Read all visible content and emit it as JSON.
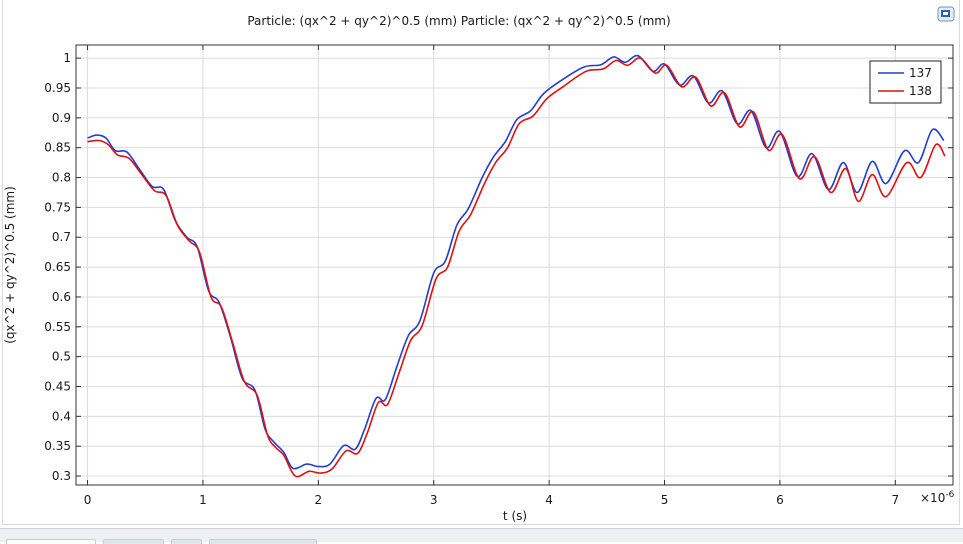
{
  "colors": {
    "series_137": "#1f3fd1",
    "series_138": "#e01010",
    "grid": "#dcdcdc",
    "axis": "#333333"
  },
  "window": {
    "corner_icon": "window-icon"
  },
  "chart_data": {
    "type": "line",
    "title": "Particle: (qx^2 + qy^2)^0.5 (mm)  Particle: (qx^2 + qy^2)^0.5 (mm)",
    "xlabel": "t (s)",
    "ylabel": "(qx^2 + qy^2)^0.5 (mm)",
    "x_multiplier": "×10",
    "x_multiplier_exp": "-6",
    "xlim": [
      -0.1,
      7.5
    ],
    "ylim": [
      0.285,
      1.022
    ],
    "xticks": [
      "0",
      "1",
      "2",
      "3",
      "4",
      "5",
      "6",
      "7"
    ],
    "yticks": [
      "0.3",
      "0.35",
      "0.4",
      "0.45",
      "0.5",
      "0.55",
      "0.6",
      "0.65",
      "0.7",
      "0.75",
      "0.8",
      "0.85",
      "0.9",
      "0.95",
      "1"
    ],
    "grid": true,
    "legend_position": "top-right",
    "series": [
      {
        "name": "137",
        "points": [
          [
            0.0,
            0.866
          ],
          [
            0.08,
            0.871
          ],
          [
            0.16,
            0.866
          ],
          [
            0.24,
            0.845
          ],
          [
            0.34,
            0.843
          ],
          [
            0.45,
            0.814
          ],
          [
            0.56,
            0.785
          ],
          [
            0.66,
            0.78
          ],
          [
            0.76,
            0.728
          ],
          [
            0.86,
            0.7
          ],
          [
            0.95,
            0.684
          ],
          [
            1.05,
            0.61
          ],
          [
            1.14,
            0.591
          ],
          [
            1.24,
            0.532
          ],
          [
            1.34,
            0.464
          ],
          [
            1.45,
            0.444
          ],
          [
            1.54,
            0.378
          ],
          [
            1.62,
            0.356
          ],
          [
            1.7,
            0.34
          ],
          [
            1.78,
            0.313
          ],
          [
            1.9,
            0.32
          ],
          [
            2.0,
            0.316
          ],
          [
            2.1,
            0.32
          ],
          [
            2.22,
            0.351
          ],
          [
            2.32,
            0.345
          ],
          [
            2.4,
            0.378
          ],
          [
            2.5,
            0.43
          ],
          [
            2.58,
            0.428
          ],
          [
            2.68,
            0.483
          ],
          [
            2.78,
            0.535
          ],
          [
            2.88,
            0.56
          ],
          [
            3.0,
            0.64
          ],
          [
            3.1,
            0.66
          ],
          [
            3.2,
            0.72
          ],
          [
            3.3,
            0.748
          ],
          [
            3.42,
            0.8
          ],
          [
            3.52,
            0.835
          ],
          [
            3.62,
            0.86
          ],
          [
            3.72,
            0.897
          ],
          [
            3.84,
            0.912
          ],
          [
            3.95,
            0.94
          ],
          [
            4.1,
            0.962
          ],
          [
            4.3,
            0.985
          ],
          [
            4.45,
            0.989
          ],
          [
            4.56,
            1.002
          ],
          [
            4.66,
            0.993
          ],
          [
            4.77,
            1.004
          ],
          [
            4.9,
            0.978
          ],
          [
            5.0,
            0.99
          ],
          [
            5.13,
            0.955
          ],
          [
            5.25,
            0.97
          ],
          [
            5.38,
            0.925
          ],
          [
            5.5,
            0.945
          ],
          [
            5.63,
            0.89
          ],
          [
            5.75,
            0.912
          ],
          [
            5.88,
            0.85
          ],
          [
            6.0,
            0.877
          ],
          [
            6.15,
            0.802
          ],
          [
            6.28,
            0.84
          ],
          [
            6.42,
            0.78
          ],
          [
            6.55,
            0.825
          ],
          [
            6.67,
            0.775
          ],
          [
            6.8,
            0.827
          ],
          [
            6.92,
            0.79
          ],
          [
            7.08,
            0.845
          ],
          [
            7.2,
            0.825
          ],
          [
            7.32,
            0.88
          ],
          [
            7.42,
            0.862
          ]
        ]
      },
      {
        "name": "138",
        "points": [
          [
            0.0,
            0.86
          ],
          [
            0.1,
            0.862
          ],
          [
            0.18,
            0.855
          ],
          [
            0.26,
            0.838
          ],
          [
            0.36,
            0.832
          ],
          [
            0.47,
            0.805
          ],
          [
            0.58,
            0.778
          ],
          [
            0.68,
            0.77
          ],
          [
            0.78,
            0.72
          ],
          [
            0.88,
            0.694
          ],
          [
            0.97,
            0.675
          ],
          [
            1.07,
            0.6
          ],
          [
            1.16,
            0.583
          ],
          [
            1.26,
            0.522
          ],
          [
            1.36,
            0.458
          ],
          [
            1.47,
            0.435
          ],
          [
            1.56,
            0.368
          ],
          [
            1.63,
            0.348
          ],
          [
            1.7,
            0.335
          ],
          [
            1.8,
            0.3
          ],
          [
            1.92,
            0.308
          ],
          [
            2.02,
            0.305
          ],
          [
            2.12,
            0.312
          ],
          [
            2.24,
            0.342
          ],
          [
            2.34,
            0.338
          ],
          [
            2.42,
            0.37
          ],
          [
            2.52,
            0.423
          ],
          [
            2.6,
            0.42
          ],
          [
            2.7,
            0.473
          ],
          [
            2.8,
            0.527
          ],
          [
            2.9,
            0.552
          ],
          [
            3.02,
            0.63
          ],
          [
            3.12,
            0.65
          ],
          [
            3.22,
            0.71
          ],
          [
            3.32,
            0.738
          ],
          [
            3.44,
            0.79
          ],
          [
            3.54,
            0.826
          ],
          [
            3.64,
            0.85
          ],
          [
            3.74,
            0.89
          ],
          [
            3.86,
            0.903
          ],
          [
            3.98,
            0.932
          ],
          [
            4.12,
            0.952
          ],
          [
            4.32,
            0.978
          ],
          [
            4.47,
            0.982
          ],
          [
            4.58,
            0.996
          ],
          [
            4.68,
            0.988
          ],
          [
            4.79,
            1.0
          ],
          [
            4.92,
            0.975
          ],
          [
            5.02,
            0.988
          ],
          [
            5.15,
            0.952
          ],
          [
            5.27,
            0.968
          ],
          [
            5.4,
            0.92
          ],
          [
            5.52,
            0.942
          ],
          [
            5.65,
            0.885
          ],
          [
            5.77,
            0.91
          ],
          [
            5.9,
            0.846
          ],
          [
            6.02,
            0.872
          ],
          [
            6.17,
            0.798
          ],
          [
            6.3,
            0.835
          ],
          [
            6.44,
            0.775
          ],
          [
            6.57,
            0.815
          ],
          [
            6.68,
            0.76
          ],
          [
            6.8,
            0.805
          ],
          [
            6.92,
            0.768
          ],
          [
            7.1,
            0.825
          ],
          [
            7.22,
            0.8
          ],
          [
            7.35,
            0.855
          ],
          [
            7.43,
            0.836
          ]
        ]
      }
    ]
  }
}
